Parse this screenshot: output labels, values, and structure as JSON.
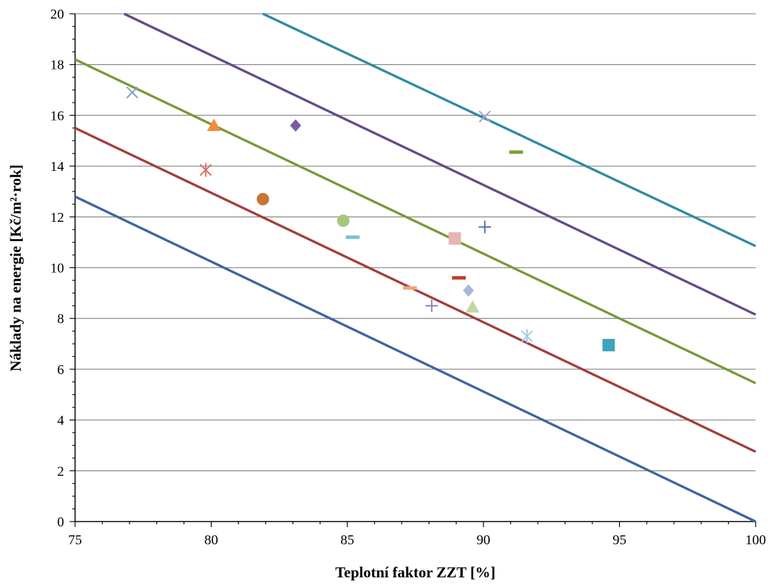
{
  "chart_data": {
    "type": "scatter",
    "title": "",
    "xlabel": "Teplotní faktor ZZT [%]",
    "ylabel": "Náklady na energie [Kč/m²·rok]",
    "xlim": [
      75,
      100
    ],
    "ylim": [
      0,
      20
    ],
    "x_ticks": [
      75,
      80,
      85,
      90,
      95,
      100
    ],
    "y_ticks": [
      0,
      2,
      4,
      6,
      8,
      10,
      12,
      14,
      16,
      18,
      20
    ],
    "x_tick_labels": [
      "75",
      "80",
      "85",
      "90",
      "95",
      "100"
    ],
    "y_tick_labels": [
      "0",
      "2",
      "4",
      "6",
      "8",
      "10",
      "12",
      "14",
      "16",
      "18",
      "20"
    ],
    "grid": "horizontal",
    "legend": "none",
    "lines": [
      {
        "color": "#3f64a1",
        "x": [
          75,
          100
        ],
        "y": [
          12.8,
          0.0
        ]
      },
      {
        "color": "#a23f3c",
        "x": [
          75,
          100
        ],
        "y": [
          15.5,
          2.75
        ]
      },
      {
        "color": "#79993a",
        "x": [
          75,
          100
        ],
        "y": [
          18.2,
          5.45
        ]
      },
      {
        "color": "#654b8a",
        "x": [
          76.8,
          100
        ],
        "y": [
          20.0,
          8.15
        ]
      },
      {
        "color": "#2f8ba3",
        "x": [
          81.9,
          100
        ],
        "y": [
          20.0,
          10.85
        ]
      }
    ],
    "points": [
      {
        "x": 77.1,
        "y": 16.9,
        "marker": "x",
        "color": "#7f9fcf"
      },
      {
        "x": 80.1,
        "y": 15.6,
        "marker": "triangle",
        "color": "#ef8c3c"
      },
      {
        "x": 79.8,
        "y": 13.85,
        "marker": "asterisk",
        "color": "#d76f6d"
      },
      {
        "x": 81.9,
        "y": 12.7,
        "marker": "circle",
        "color": "#c87632"
      },
      {
        "x": 83.1,
        "y": 15.6,
        "marker": "diamond",
        "color": "#7a5ca3"
      },
      {
        "x": 84.85,
        "y": 11.85,
        "marker": "circle",
        "color": "#a4c878"
      },
      {
        "x": 85.2,
        "y": 11.2,
        "marker": "dash",
        "color": "#7abfd8"
      },
      {
        "x": 87.3,
        "y": 9.2,
        "marker": "dash",
        "color": "#f4a47a"
      },
      {
        "x": 88.1,
        "y": 8.5,
        "marker": "plus",
        "color": "#9378bb"
      },
      {
        "x": 88.95,
        "y": 11.15,
        "marker": "square",
        "color": "#e8b4b6"
      },
      {
        "x": 89.1,
        "y": 9.6,
        "marker": "dash",
        "color": "#c0392b"
      },
      {
        "x": 89.45,
        "y": 9.1,
        "marker": "diamond",
        "color": "#a9b7d9"
      },
      {
        "x": 89.6,
        "y": 8.45,
        "marker": "triangle",
        "color": "#c4d6a6"
      },
      {
        "x": 90.05,
        "y": 11.6,
        "marker": "plus",
        "color": "#4a6fb5"
      },
      {
        "x": 90.05,
        "y": 15.95,
        "marker": "x",
        "color": "#b1a0c9"
      },
      {
        "x": 91.2,
        "y": 14.55,
        "marker": "dash",
        "color": "#7e9e3a"
      },
      {
        "x": 91.6,
        "y": 7.3,
        "marker": "asterisk",
        "color": "#9fcbe8"
      },
      {
        "x": 94.6,
        "y": 6.95,
        "marker": "square",
        "color": "#3fa3bd"
      }
    ]
  }
}
